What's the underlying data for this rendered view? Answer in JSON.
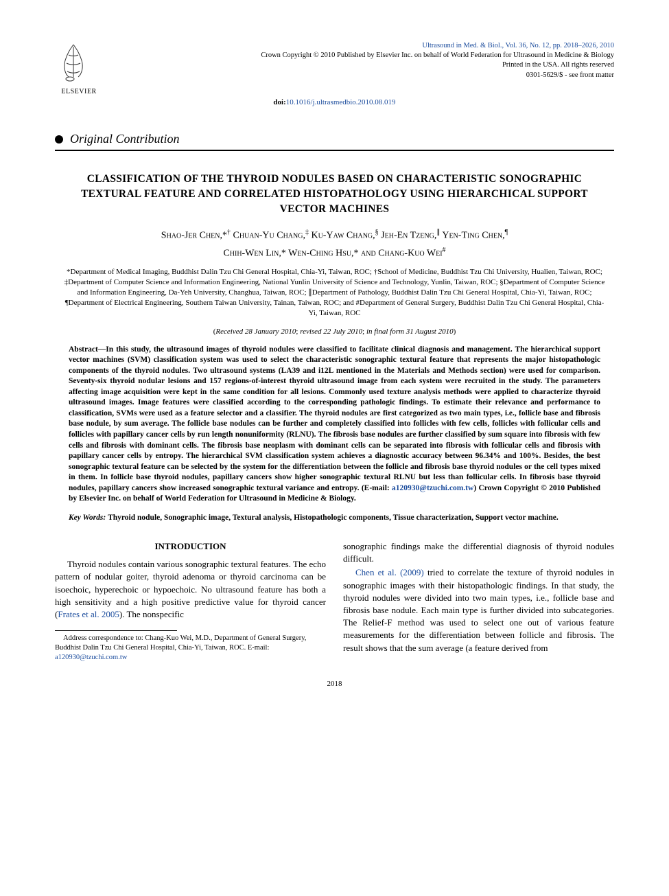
{
  "header": {
    "publisher_name": "ELSEVIER",
    "journal_ref": "Ultrasound in Med. & Biol., Vol. 36, No. 12, pp. 2018–2026, 2010",
    "copyright_line": "Crown Copyright © 2010 Published by Elsevier Inc. on behalf of World Federation for Ultrasound in Medicine & Biology",
    "printed_line": "Printed in the USA. All rights reserved",
    "issn_line": "0301-5629/$ - see front matter",
    "doi_label": "doi:",
    "doi": "10.1016/j.ultrasmedbio.2010.08.019"
  },
  "section_type": "Original Contribution",
  "title": "CLASSIFICATION OF THE THYROID NODULES BASED ON CHARACTERISTIC SONOGRAPHIC TEXTURAL FEATURE AND CORRELATED HISTOPATHOLOGY USING HIERARCHICAL SUPPORT VECTOR MACHINES",
  "authors_html": "Shao-Jer Chen,*<sup>†</sup> Chuan-Yu Chang,<sup>‡</sup> Ku-Yaw Chang,<sup>§</sup> Jeh-En Tzeng,<sup>∥</sup> Yen-Ting Chen,<sup>¶</sup><br>Chih-Wen Lin,* Wen-Ching Hsu,* and Chang-Kuo Wei<sup>#</sup>",
  "affiliations": "*Department of Medical Imaging, Buddhist Dalin Tzu Chi General Hospital, Chia-Yi, Taiwan, ROC; †School of Medicine, Buddhist Tzu Chi University, Hualien, Taiwan, ROC; ‡Department of Computer Science and Information Engineering, National Yunlin University of Science and Technology, Yunlin, Taiwan, ROC; §Department of Computer Science and Information Engineering, Da-Yeh University, Changhua, Taiwan, ROC; ∥Department of Pathology, Buddhist Dalin Tzu Chi General Hospital, Chia-Yi, Taiwan, ROC; ¶Department of Electrical Engineering, Southern Taiwan University, Tainan, Taiwan, ROC; and #Department of General Surgery, Buddhist Dalin Tzu Chi General Hospital, Chia-Yi, Taiwan, ROC",
  "dates": {
    "received": "Received 28 January 2010",
    "revised": "revised 22 July 2010",
    "final": "in final form 31 August 2010"
  },
  "abstract": {
    "label": "Abstract—",
    "text": "In this study, the ultrasound images of thyroid nodules were classified to facilitate clinical diagnosis and management. The hierarchical support vector machines (SVM) classification system was used to select the characteristic sonographic textural feature that represents the major histopathologic components of the thyroid nodules. Two ultrasound systems (LA39 and i12L mentioned in the Materials and Methods section) were used for comparison. Seventy-six thyroid nodular lesions and 157 regions-of-interest thyroid ultrasound image from each system were recruited in the study. The parameters affecting image acquisition were kept in the same condition for all lesions. Commonly used texture analysis methods were applied to characterize thyroid ultrasound images. Image features were classified according to the corresponding pathologic findings. To estimate their relevance and performance to classification, SVMs were used as a feature selector and a classifier. The thyroid nodules are first categorized as two main types, i.e., follicle base and fibrosis base nodule, by sum average. The follicle base nodules can be further and completely classified into follicles with few cells, follicles with follicular cells and follicles with papillary cancer cells by run length nonuniformity (RLNU). The fibrosis base nodules are further classified by sum square into fibrosis with few cells and fibrosis with dominant cells. The fibrosis base neoplasm with dominant cells can be separated into fibrosis with follicular cells and fibrosis with papillary cancer cells by entropy. The hierarchical SVM classification system achieves a diagnostic accuracy between 96.34% and 100%. Besides, the best sonographic textural feature can be selected by the system for the differentiation between the follicle and fibrosis base thyroid nodules or the cell types mixed in them. In follicle base thyroid nodules, papillary cancers show higher sonographic textural RLNU but less than follicular cells. In fibrosis base thyroid nodules, papillary cancers show increased sonographic textural variance and entropy. (E-mail: ",
    "email": "a120930@tzuchi.com.tw",
    "tail": ")   Crown Copyright © 2010 Published by Elsevier Inc. on behalf of World Federation for Ultrasound in Medicine & Biology."
  },
  "keywords": {
    "label": "Key Words: ",
    "text": "Thyroid nodule, Sonographic image, Textural analysis, Histopathologic components, Tissue characterization, Support vector machine."
  },
  "intro_heading": "INTRODUCTION",
  "body": {
    "p1_a": "Thyroid nodules contain various sonographic textural features. The echo pattern of nodular goiter, thyroid adenoma or thyroid carcinoma can be isoechoic, hyperechoic or hypoechoic. No ultrasound feature has both a high sensitivity and a high positive predictive value for thyroid cancer (",
    "p1_ref": "Frates et al. 2005",
    "p1_b": "). The nonspecific ",
    "p1_c": "sonographic findings make the differential diagnosis of thyroid nodules difficult.",
    "p2_ref": "Chen et al. (2009)",
    "p2": " tried to correlate the texture of thyroid nodules in sonographic images with their histopathologic findings. In that study, the thyroid nodules were divided into two main types, i.e., follicle base and fibrosis base nodule. Each main type is further divided into subcategories. The Relief-F method was used to select one out of various feature measurements for the differentiation between follicle and fibrosis. The result shows that the sum average (a feature derived from"
  },
  "footnote": {
    "text": "Address correspondence to: Chang-Kuo Wei, M.D., Department of General Surgery, Buddhist Dalin Tzu Chi General Hospital, Chia-Yi, Taiwan, ROC. E-mail: ",
    "email": "a120930@tzuchi.com.tw"
  },
  "page_number": "2018",
  "colors": {
    "link": "#1a4b9c",
    "text": "#000000",
    "background": "#ffffff"
  }
}
